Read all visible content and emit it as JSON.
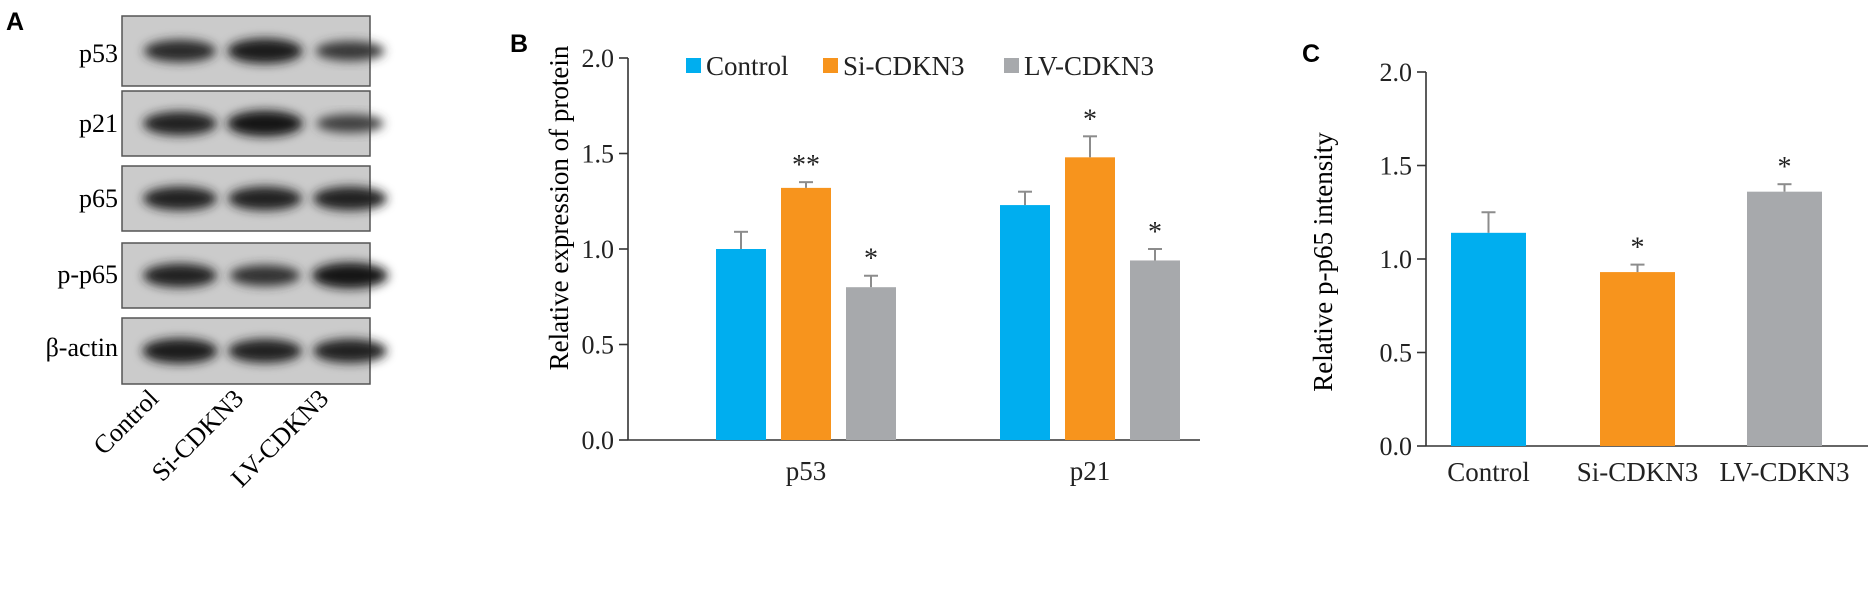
{
  "panels": {
    "a": {
      "letter": "A",
      "bands": [
        "p53",
        "p21",
        "p65",
        "p-p65",
        "β-actin"
      ],
      "lanes": [
        "Control",
        "Si-CDKN3",
        "LV-CDKN3"
      ]
    },
    "b": {
      "letter": "B"
    },
    "c": {
      "letter": "C"
    }
  },
  "colors": {
    "control": "#00AEEF",
    "si": "#F7941D",
    "lv": "#A7A9AC",
    "error_bar": "#8C8C8C"
  },
  "chart_data": [
    {
      "type": "bar",
      "panel": "B",
      "categories": [
        "p53",
        "p21"
      ],
      "series": [
        {
          "name": "Control",
          "values": [
            1.0,
            1.23
          ],
          "errors": [
            0.09,
            0.07
          ],
          "marks": [
            "",
            ""
          ]
        },
        {
          "name": "Si-CDKN3",
          "values": [
            1.32,
            1.48
          ],
          "errors": [
            0.03,
            0.11
          ],
          "marks": [
            "**",
            "*"
          ]
        },
        {
          "name": "LV-CDKN3",
          "values": [
            0.8,
            0.94
          ],
          "errors": [
            0.06,
            0.06
          ],
          "marks": [
            "*",
            "*"
          ]
        }
      ],
      "ylabel": "Relative expression of protein",
      "ylim": [
        0,
        2.0
      ],
      "yticks": [
        "0.0",
        "0.5",
        "1.0",
        "1.5",
        "2.0"
      ],
      "legend": "top"
    },
    {
      "type": "bar",
      "panel": "C",
      "categories": [
        "Control",
        "Si-CDKN3",
        "LV-CDKN3"
      ],
      "values": [
        1.14,
        0.93,
        1.36
      ],
      "errors": [
        0.11,
        0.04,
        0.04
      ],
      "marks": [
        "",
        "*",
        "*"
      ],
      "ylabel": "Relative p-p65 intensity",
      "ylim": [
        0,
        2.0
      ],
      "yticks": [
        "0.0",
        "0.5",
        "1.0",
        "1.5",
        "2.0"
      ]
    }
  ]
}
